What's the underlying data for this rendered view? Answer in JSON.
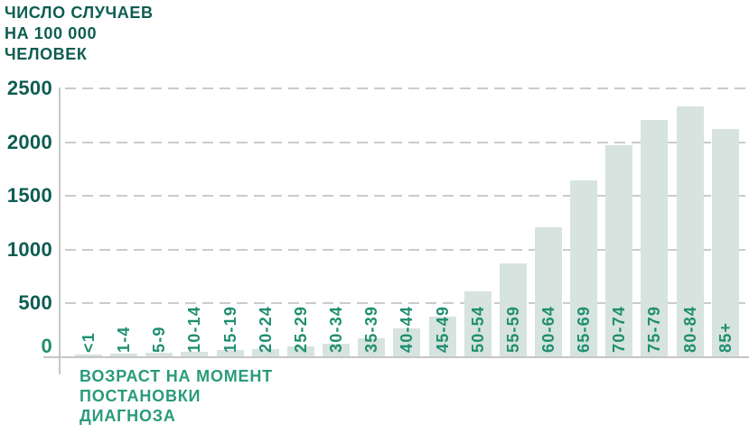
{
  "chart_data": {
    "type": "bar",
    "title_lines": [
      "ЧИСЛО СЛУЧАЕВ",
      "НА 100 000",
      "ЧЕЛОВЕК"
    ],
    "xlabel_lines": [
      "ВОЗРАСТ НА МОМЕНТ",
      "ПОСТАНОВКИ",
      "ДИАГНОЗА"
    ],
    "categories": [
      "<1",
      "1-4",
      "5-9",
      "10-14",
      "15-19",
      "20-24",
      "25-29",
      "30-34",
      "35-39",
      "40-44",
      "45-49",
      "50-54",
      "55-59",
      "60-64",
      "65-69",
      "70-74",
      "75-79",
      "80-84",
      "85+"
    ],
    "values": [
      20,
      25,
      30,
      45,
      55,
      65,
      90,
      120,
      170,
      260,
      370,
      600,
      860,
      1200,
      1640,
      1960,
      2200,
      2320,
      2110
    ],
    "y_ticks": [
      0,
      500,
      1000,
      1500,
      2000,
      2500
    ],
    "ylim": [
      0,
      2500
    ],
    "grid": "horizontal-dashed",
    "legend_position": "none",
    "colors": {
      "title": "#0e5d52",
      "y_tick": "#0e5d52",
      "zero_tick": "#1f8f70",
      "category_label": "#1f8f70",
      "x_axis_title": "#2a9b7a",
      "bar_fill": "#d7e3de",
      "grid_line": "#cbcbcb",
      "axis_line": "#c6c6c6",
      "background": "#ffffff"
    }
  }
}
